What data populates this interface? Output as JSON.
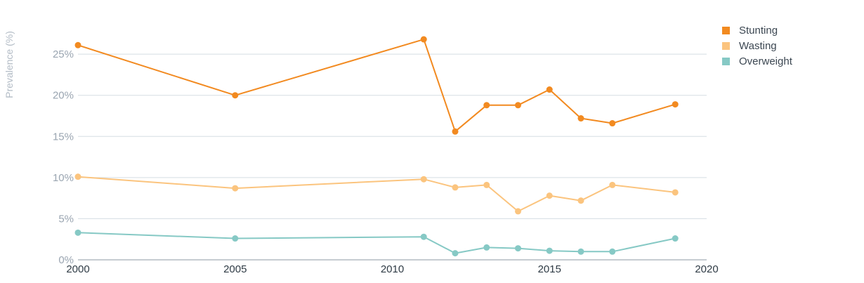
{
  "chart_data": {
    "type": "line",
    "ylabel": "Prevalence (%)",
    "xlim": [
      2000,
      2020
    ],
    "ylim": [
      0,
      28
    ],
    "x_ticks": [
      2000,
      2005,
      2010,
      2015,
      2020
    ],
    "x_tick_labels": [
      "2000",
      "2005",
      "2010",
      "2015",
      "2020"
    ],
    "y_ticks": [
      0,
      5,
      10,
      15,
      20,
      25
    ],
    "y_tick_labels": [
      "0%",
      "5%",
      "10%",
      "15%",
      "20%",
      "25%"
    ],
    "grid": "horizontal",
    "legend_position": "top-right",
    "series": [
      {
        "name": "Stunting",
        "color": "#f28a20",
        "points": [
          [
            2000,
            26.1
          ],
          [
            2005,
            20.0
          ],
          [
            2011,
            26.8
          ],
          [
            2012,
            15.6
          ],
          [
            2013,
            18.8
          ],
          [
            2014,
            18.8
          ],
          [
            2015,
            20.7
          ],
          [
            2016,
            17.2
          ],
          [
            2017,
            16.6
          ],
          [
            2019,
            18.9
          ]
        ]
      },
      {
        "name": "Wasting",
        "color": "#fbc47e",
        "points": [
          [
            2000,
            10.1
          ],
          [
            2005,
            8.7
          ],
          [
            2011,
            9.8
          ],
          [
            2012,
            8.8
          ],
          [
            2013,
            9.1
          ],
          [
            2014,
            5.9
          ],
          [
            2015,
            7.8
          ],
          [
            2016,
            7.2
          ],
          [
            2017,
            9.1
          ],
          [
            2019,
            8.2
          ]
        ]
      },
      {
        "name": "Overweight",
        "color": "#86c9c5",
        "points": [
          [
            2000,
            3.3
          ],
          [
            2005,
            2.6
          ],
          [
            2011,
            2.8
          ],
          [
            2012,
            0.8
          ],
          [
            2013,
            1.5
          ],
          [
            2014,
            1.4
          ],
          [
            2015,
            1.1
          ],
          [
            2016,
            1.0
          ],
          [
            2017,
            1.0
          ],
          [
            2019,
            2.6
          ]
        ]
      }
    ]
  }
}
